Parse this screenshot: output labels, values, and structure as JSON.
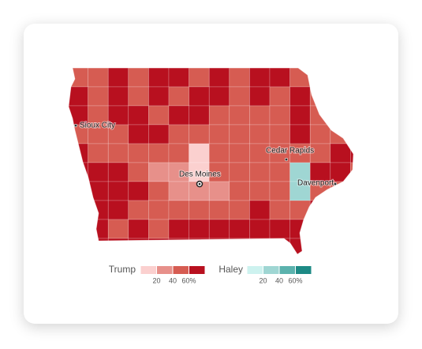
{
  "map": {
    "cities": [
      "Sioux City",
      "Cedar Rapids",
      "Des Moines",
      "Davenport"
    ],
    "legend": {
      "range": [
        0,
        80
      ],
      "ticks": [
        20,
        40,
        {
          "value": 60,
          "label": "60%"
        }
      ],
      "groups": [
        {
          "name": "Trump",
          "colors": [
            "#fbd0cf",
            "#e7908a",
            "#d65c52",
            "#b8101f"
          ]
        },
        {
          "name": "Haley",
          "colors": [
            "#cdf2ef",
            "#9fd6d3",
            "#5bb2ad",
            "#1d8a85"
          ]
        }
      ]
    }
  }
}
